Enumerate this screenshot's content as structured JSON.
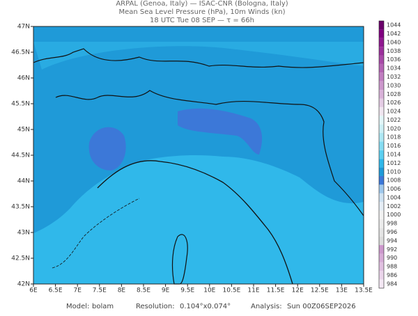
{
  "header": {
    "lines": [
      "ARPAL (Genoa, Italy)  —  ISAC-CNR (Bologna, Italy)",
      "Mean Sea Level Pressure (hPa), 10m Winds (kn)",
      "18 UTC Tue 08 SEP  —  τ = 66h"
    ]
  },
  "axes": {
    "lon_labels": [
      "6E",
      "6.5E",
      "7E",
      "7.5E",
      "8E",
      "8.5E",
      "9E",
      "9.5E",
      "10E",
      "10.5E",
      "11E",
      "11.5E",
      "12E",
      "12.5E",
      "13E",
      "13.5E"
    ],
    "lat_labels": [
      "42N",
      "42.5N",
      "43N",
      "43.5N",
      "44N",
      "44.5N",
      "45N",
      "45.5N",
      "46N",
      "46.5N",
      "47N"
    ]
  },
  "colorbar": {
    "levels": [
      984,
      986,
      988,
      990,
      992,
      994,
      996,
      998,
      1000,
      1002,
      1004,
      1006,
      1008,
      1010,
      1012,
      1014,
      1016,
      1018,
      1020,
      1022,
      1024,
      1026,
      1028,
      1030,
      1032,
      1034,
      1036,
      1038,
      1040,
      1042,
      1044
    ],
    "colors": [
      "#f4e8f4",
      "#ead4ea",
      "#e0c0e0",
      "#d6acd6",
      "#cc98cc",
      "#dcdcdc",
      "#e4e4e4",
      "#ececec",
      "#f2f2f2",
      "#e6eef6",
      "#cfe2f2",
      "#9fc8ec",
      "#3c78d8",
      "#1f9ad8",
      "#30b8ea",
      "#5ccff0",
      "#86dcf2",
      "#aee8f4",
      "#cdf0f6",
      "#e2f6f8",
      "#f0e6f0",
      "#e4cce4",
      "#d8b2d8",
      "#cc98cc",
      "#c07ec0",
      "#b464b4",
      "#a84aa8",
      "#9c309c",
      "#901890",
      "#800080",
      "#6a006a"
    ]
  },
  "footer": {
    "items": [
      "Model:",
      "bolam",
      "Resolution:",
      "0.104°x0.074°",
      "Analysis:",
      "Sun 00Z06SEP2026"
    ]
  }
}
